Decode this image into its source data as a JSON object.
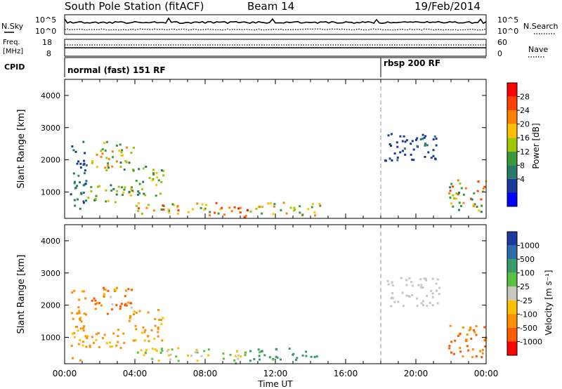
{
  "header": {
    "station": "South Pole Station (fitACF)",
    "beam": "Beam 14",
    "date": "19/Feb/2014"
  },
  "noise_panel": {
    "left_label": "N.Sky",
    "left_ticks": [
      "10^5",
      "10^0"
    ],
    "right_label": "N.Search",
    "right_ticks": [
      "10^5",
      "10^0"
    ]
  },
  "freq_panel": {
    "left_label_1": "Freq.",
    "left_label_2": "[MHz]",
    "left_ticks": [
      "18",
      "8"
    ],
    "right_label": "Nave",
    "right_ticks": [
      "60",
      "0"
    ]
  },
  "cpid_panel": {
    "label": "CPID",
    "segments": [
      {
        "name": "normal (fast) 151 RF",
        "start_hour": 0
      },
      {
        "name": "rbsp 200 RF",
        "start_hour": 18
      }
    ]
  },
  "time_axis": {
    "label": "Time UT",
    "ticks": [
      "00:00",
      "04:00",
      "08:00",
      "12:00",
      "16:00",
      "20:00",
      "00:00"
    ]
  },
  "power_scale": {
    "title": "Power [dB]",
    "labels": [
      "28",
      "24",
      "20",
      "16",
      "12",
      "8",
      "4"
    ],
    "colors": [
      "#ff0000",
      "#ff4000",
      "#ff8000",
      "#ffc000",
      "#a0c800",
      "#3a9a3a",
      "#2a7a68",
      "#1a3a9a",
      "#0000ff"
    ]
  },
  "velocity_scale": {
    "title": "Velocity [m s⁻¹]",
    "labels": [
      "1000",
      "500",
      "100",
      "25",
      "-25",
      "-100",
      "-500",
      "-1000"
    ],
    "colors": [
      "#1a3aa0",
      "#2c6ea8",
      "#3a9a6a",
      "#5ac040",
      "#c8c8c0",
      "#ffc000",
      "#ff9000",
      "#ff5a00",
      "#ff0000"
    ]
  },
  "chart_data": [
    {
      "type": "heatmap",
      "ylabel": "Slant Range [km]",
      "xlabel": "Time UT",
      "y_ticks": [
        1000,
        2000,
        3000,
        4000
      ],
      "xlim": [
        0,
        24
      ],
      "ylim": [
        180,
        4500
      ],
      "quantity": "power_dB",
      "regions": [
        {
          "t0": 0.3,
          "t1": 1.2,
          "r0": 300,
          "r1": 2600,
          "level": [
            4,
            12
          ]
        },
        {
          "t0": 1.5,
          "t1": 3.9,
          "r0": 1700,
          "r1": 2600,
          "level": [
            8,
            24
          ]
        },
        {
          "t0": 1.2,
          "t1": 3.4,
          "r0": 700,
          "r1": 1300,
          "level": [
            8,
            20
          ]
        },
        {
          "t0": 3.6,
          "t1": 5.6,
          "r0": 900,
          "r1": 1900,
          "level": [
            8,
            20
          ]
        },
        {
          "t0": 4.0,
          "t1": 9.0,
          "r0": 300,
          "r1": 700,
          "level": [
            12,
            28
          ]
        },
        {
          "t0": 9.0,
          "t1": 10.5,
          "r0": 200,
          "r1": 600,
          "level": [
            20,
            30
          ]
        },
        {
          "t0": 10.5,
          "t1": 14.5,
          "r0": 300,
          "r1": 700,
          "level": [
            8,
            24
          ]
        },
        {
          "t0": 18.2,
          "t1": 21.3,
          "r0": 2000,
          "r1": 2900,
          "level": [
            4,
            8
          ]
        },
        {
          "t0": 21.8,
          "t1": 24.0,
          "r0": 400,
          "r1": 1400,
          "level": [
            8,
            28
          ]
        }
      ]
    },
    {
      "type": "heatmap",
      "ylabel": "Slant Range [km]",
      "xlabel": "Time UT",
      "y_ticks": [
        1000,
        2000,
        3000,
        4000
      ],
      "xlim": [
        0,
        24
      ],
      "ylim": [
        180,
        4500
      ],
      "quantity": "velocity_m_s",
      "regions": [
        {
          "t0": 0.3,
          "t1": 1.2,
          "r0": 300,
          "r1": 2600,
          "level": [
            -500,
            -25
          ]
        },
        {
          "t0": 1.5,
          "t1": 3.9,
          "r0": 1700,
          "r1": 2600,
          "level": [
            -1000,
            25
          ]
        },
        {
          "t0": 1.2,
          "t1": 3.4,
          "r0": 700,
          "r1": 1300,
          "level": [
            -500,
            -25
          ]
        },
        {
          "t0": 3.6,
          "t1": 5.6,
          "r0": 900,
          "r1": 1900,
          "level": [
            -500,
            -25
          ]
        },
        {
          "t0": 4.0,
          "t1": 9.0,
          "r0": 300,
          "r1": 700,
          "level": [
            -100,
            100
          ]
        },
        {
          "t0": 9.0,
          "t1": 10.5,
          "r0": 200,
          "r1": 600,
          "level": [
            -100,
            100
          ]
        },
        {
          "t0": 10.5,
          "t1": 14.5,
          "r0": 300,
          "r1": 700,
          "level": [
            25,
            500
          ]
        },
        {
          "t0": 18.2,
          "t1": 21.3,
          "r0": 2000,
          "r1": 2900,
          "level": [
            -25,
            25
          ]
        },
        {
          "t0": 21.8,
          "t1": 24.0,
          "r0": 400,
          "r1": 1400,
          "level": [
            -1000,
            -100
          ]
        }
      ]
    }
  ]
}
